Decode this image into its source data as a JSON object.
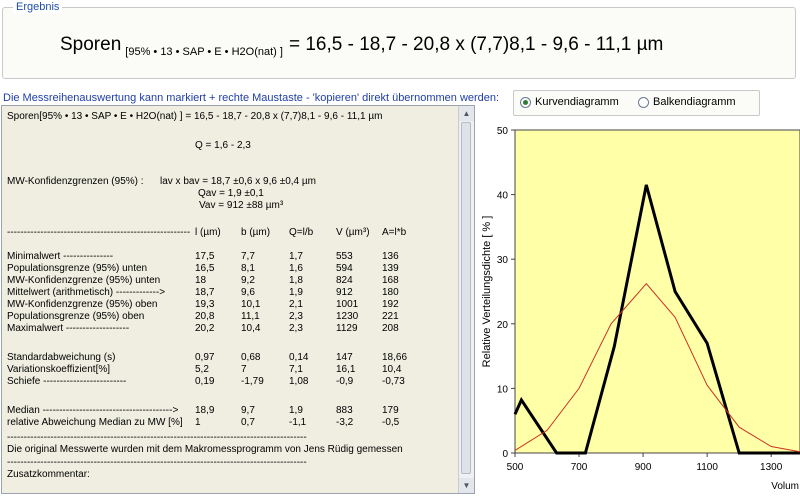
{
  "ergebnis": {
    "legend": "Ergebnis",
    "label": "Sporen",
    "subscript": "[95% • 13 • SAP • E • H2O(nat) ]",
    "value": "= 16,5 - 18,7 - 20,8  x  (7,7)8,1 - 9,6 - 11,1 µm"
  },
  "hint": "Die Messreihenauswertung kann markiert + rechte Maustaste - 'kopieren' direkt übernommen werden:",
  "report": {
    "header": "Sporen[95% • 13 • SAP • E • H2O(nat) ] = 16,5 - 18,7 - 20,8 x (7,7)8,1 - 9,6 - 11,1 µm",
    "q": "Q = 1,6 - 2,3",
    "mw_label": "MW-Konfidenzgrenzen (95%) :",
    "mw1": "lav x bav   = 18,7 ±0,6  x  9,6 ±0,4 µm",
    "mw2": "Qav  = 1,9 ±0,1",
    "mw3": "Vav  = 912 ±88 µm³",
    "table_dash": "-------------------------------------------------------",
    "columns": [
      "l (µm)",
      "b (µm)",
      "Q=l/b",
      "V (µm³)",
      "A=l*b"
    ],
    "rows": [
      {
        "label": "Minimalwert ---------------",
        "v": [
          "17,5",
          "7,7",
          "1,7",
          "553",
          "136"
        ]
      },
      {
        "label": "Populationsgrenze (95%)  unten",
        "v": [
          "16,5",
          "8,1",
          "1,6",
          "594",
          "139"
        ]
      },
      {
        "label": "MW-Konfidenzgrenze (95%) unten",
        "v": [
          "18",
          "9,2",
          "1,8",
          "824",
          "168"
        ]
      },
      {
        "label": "Mittelwert (arithmetisch) ------------->",
        "v": [
          "18,7",
          "9,6",
          "1,9",
          "912",
          "180"
        ]
      },
      {
        "label": "MW-Konfidenzgrenze (95%) oben",
        "v": [
          "19,3",
          "10,1",
          "2,1",
          "1001",
          "192"
        ]
      },
      {
        "label": "Populationsgrenze (95%) oben",
        "v": [
          "20,8",
          "11,1",
          "2,3",
          "1230",
          "221"
        ]
      },
      {
        "label": "Maximalwert -------------------",
        "v": [
          "20,2",
          "10,4",
          "2,3",
          "1129",
          "208"
        ]
      }
    ],
    "stats": [
      {
        "label": "Standardabweichung (s)",
        "v": [
          "0,97",
          "0,68",
          "0,14",
          "147",
          "18,66"
        ]
      },
      {
        "label": "Variationskoeffizient[%]",
        "v": [
          "5,2",
          "7",
          "7,1",
          "16,1",
          "10,4"
        ]
      },
      {
        "label": "Schiefe -------------------------",
        "v": [
          "0,19",
          "-1,79",
          "1,08",
          "-0,9",
          "-0,73"
        ]
      }
    ],
    "median": [
      {
        "label": "Median --------------------------------------->",
        "v": [
          "18,9",
          "9,7",
          "1,9",
          "883",
          "179"
        ]
      },
      {
        "label": "relative Abweichung Median zu MW [%]",
        "v": [
          "1",
          "0,7",
          "-1,1",
          "-3,2",
          "-0,5"
        ]
      }
    ],
    "dash_long": "------------------------------------------------------------------------------------------",
    "footer": "Die original Messwerte wurden mit dem Makromessprogramm von Jens Rüdig gemessen",
    "zusatz": "Zusatzkommentar:"
  },
  "options": {
    "curve_label": "Kurvendiagramm",
    "bar_label": "Balkendiagramm",
    "selected": "Kurvendiagramm"
  },
  "chart_data": {
    "type": "line",
    "ylabel": "Relative Verteilungsdichte  [ % ]",
    "xlabel": "Volum",
    "xlim": [
      500,
      1390
    ],
    "ylim": [
      0,
      50
    ],
    "x_ticks": [
      500,
      700,
      900,
      1100,
      1300
    ],
    "y_ticks": [
      0,
      10,
      20,
      30,
      40,
      50
    ],
    "background": "#ffffa8",
    "series": [
      {
        "color": "#000000",
        "x": [
          500,
          520,
          630,
          720,
          810,
          910,
          1000,
          1100,
          1200,
          1390
        ],
        "y": [
          6,
          8.2,
          0,
          0,
          16.5,
          41.5,
          25,
          17,
          0,
          0
        ]
      },
      {
        "color": "#cc3322",
        "x": [
          500,
          600,
          700,
          800,
          910,
          1000,
          1100,
          1200,
          1300,
          1390
        ],
        "y": [
          0.4,
          3.5,
          10,
          20,
          26.2,
          21,
          10.5,
          4,
          1,
          0.2
        ]
      }
    ]
  }
}
